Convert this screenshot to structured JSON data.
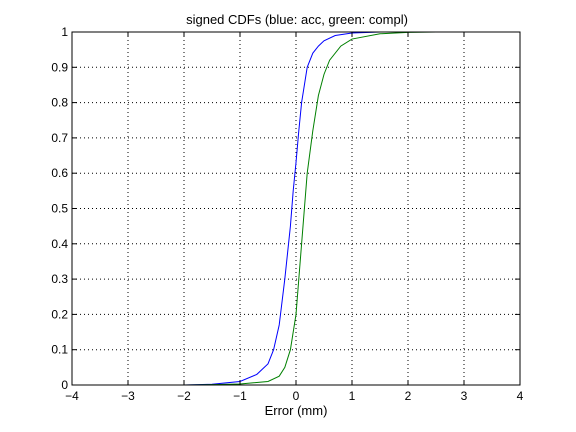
{
  "chart_data": {
    "type": "line",
    "title": "signed CDFs (blue: acc, green: compl)",
    "xlabel": "Error (mm)",
    "ylabel": "",
    "xlim": [
      -4,
      4
    ],
    "ylim": [
      0,
      1
    ],
    "xticks": [
      "−4",
      "−3",
      "−2",
      "−1",
      "0",
      "1",
      "2",
      "3",
      "4"
    ],
    "yticks": [
      "0",
      "0.1",
      "0.2",
      "0.3",
      "0.4",
      "0.5",
      "0.6",
      "0.7",
      "0.8",
      "0.9",
      "1"
    ],
    "grid": true,
    "grid_style": "dotted",
    "series": [
      {
        "color": "#0000ff",
        "points": [
          [
            -2.0,
            0.0
          ],
          [
            -1.5,
            0.002
          ],
          [
            -1.0,
            0.01
          ],
          [
            -0.7,
            0.03
          ],
          [
            -0.5,
            0.06
          ],
          [
            -0.4,
            0.1
          ],
          [
            -0.3,
            0.17
          ],
          [
            -0.2,
            0.3
          ],
          [
            -0.1,
            0.45
          ],
          [
            -0.05,
            0.55
          ],
          [
            0.0,
            0.63
          ],
          [
            0.05,
            0.72
          ],
          [
            0.1,
            0.8
          ],
          [
            0.2,
            0.9
          ],
          [
            0.3,
            0.94
          ],
          [
            0.4,
            0.96
          ],
          [
            0.5,
            0.975
          ],
          [
            0.7,
            0.99
          ],
          [
            1.0,
            0.997
          ],
          [
            1.5,
            1.0
          ]
        ]
      },
      {
        "color": "#008000",
        "points": [
          [
            -2.0,
            0.0
          ],
          [
            -1.5,
            0.001
          ],
          [
            -1.0,
            0.003
          ],
          [
            -0.5,
            0.01
          ],
          [
            -0.3,
            0.025
          ],
          [
            -0.2,
            0.05
          ],
          [
            -0.1,
            0.1
          ],
          [
            0.0,
            0.2
          ],
          [
            0.05,
            0.3
          ],
          [
            0.1,
            0.4
          ],
          [
            0.15,
            0.5
          ],
          [
            0.2,
            0.6
          ],
          [
            0.3,
            0.72
          ],
          [
            0.4,
            0.82
          ],
          [
            0.5,
            0.88
          ],
          [
            0.6,
            0.92
          ],
          [
            0.8,
            0.96
          ],
          [
            1.0,
            0.98
          ],
          [
            1.5,
            0.995
          ],
          [
            2.0,
            0.999
          ],
          [
            2.5,
            1.0
          ]
        ]
      }
    ]
  }
}
